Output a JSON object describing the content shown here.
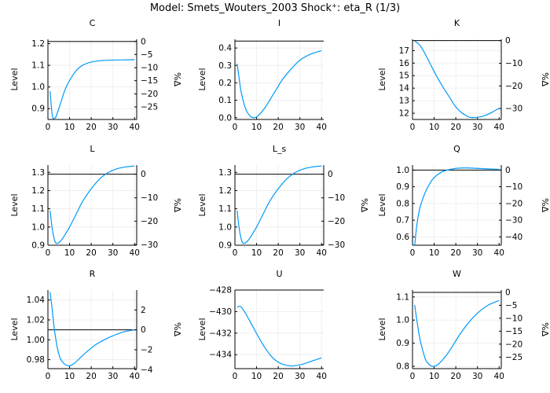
{
  "figure_title": "Model: Smets_Wouters_2003        Shock⁺: eta_R  (1/3)",
  "colors": {
    "line": "#009AFA",
    "axis": "#000000",
    "grid": "#ececec",
    "steady": "#000000"
  },
  "chart_data": [
    {
      "type": "line",
      "title": "C",
      "ylabel": "Level",
      "y2label": "%Δ",
      "xlim": [
        0,
        41
      ],
      "ylim": [
        0.85,
        1.22
      ],
      "xticks": [
        "0",
        "10",
        "20",
        "30",
        "40"
      ],
      "yticks": [
        {
          "v": 0.9,
          "t": "0.9"
        },
        {
          "v": 1.0,
          "t": "1.0"
        },
        {
          "v": 1.1,
          "t": "1.1"
        },
        {
          "v": 1.2,
          "t": "1.2"
        }
      ],
      "y2ticks": [
        {
          "v": 1.21,
          "t": "0"
        },
        {
          "v": 1.15,
          "t": "−5"
        },
        {
          "v": 1.089,
          "t": "−10"
        },
        {
          "v": 1.029,
          "t": "−15"
        },
        {
          "v": 0.968,
          "t": "−20"
        },
        {
          "v": 0.908,
          "t": "−25"
        }
      ],
      "steady_state": 1.21,
      "x": [
        1,
        2,
        3,
        4,
        6,
        8,
        10,
        13,
        16,
        20,
        25,
        30,
        35,
        40
      ],
      "values": [
        0.98,
        0.87,
        0.855,
        0.87,
        0.93,
        0.99,
        1.03,
        1.075,
        1.1,
        1.115,
        1.122,
        1.124,
        1.125,
        1.126
      ]
    },
    {
      "type": "line",
      "title": "I",
      "ylabel": "Level",
      "y2label": "",
      "xlim": [
        0,
        41
      ],
      "ylim": [
        -0.01,
        0.45
      ],
      "xticks": [
        "0",
        "10",
        "20",
        "30",
        "40"
      ],
      "yticks": [
        {
          "v": 0.0,
          "t": "0.0"
        },
        {
          "v": 0.1,
          "t": "0.1"
        },
        {
          "v": 0.2,
          "t": "0.2"
        },
        {
          "v": 0.3,
          "t": "0.3"
        },
        {
          "v": 0.4,
          "t": "0.4"
        }
      ],
      "y2ticks": [],
      "steady_state": 0.44,
      "x": [
        1,
        2,
        3,
        5,
        7,
        9,
        11,
        14,
        18,
        22,
        26,
        30,
        35,
        40
      ],
      "values": [
        0.31,
        0.22,
        0.14,
        0.05,
        0.01,
        0.0,
        0.015,
        0.06,
        0.14,
        0.22,
        0.28,
        0.33,
        0.365,
        0.385
      ]
    },
    {
      "type": "line",
      "title": "K",
      "ylabel": "Level",
      "y2label": "%Δ",
      "xlim": [
        0,
        41
      ],
      "ylim": [
        11.5,
        17.9
      ],
      "xticks": [
        "0",
        "10",
        "20",
        "30",
        "40"
      ],
      "yticks": [
        {
          "v": 12,
          "t": "12"
        },
        {
          "v": 13,
          "t": "13"
        },
        {
          "v": 14,
          "t": "14"
        },
        {
          "v": 15,
          "t": "15"
        },
        {
          "v": 16,
          "t": "16"
        },
        {
          "v": 17,
          "t": "17"
        }
      ],
      "y2ticks": [
        {
          "v": 17.8,
          "t": "0"
        },
        {
          "v": 15.99,
          "t": "−10"
        },
        {
          "v": 14.18,
          "t": "−20"
        },
        {
          "v": 12.37,
          "t": "−30"
        }
      ],
      "steady_state": 17.8,
      "x": [
        1,
        3,
        5,
        8,
        11,
        14,
        17,
        20,
        23,
        26,
        28,
        31,
        34,
        37,
        40
      ],
      "values": [
        17.75,
        17.5,
        17.0,
        16.0,
        15.0,
        14.1,
        13.3,
        12.5,
        12.0,
        11.7,
        11.65,
        11.7,
        11.85,
        12.1,
        12.4
      ]
    },
    {
      "type": "line",
      "title": "L",
      "ylabel": "Level",
      "y2label": "%Δ",
      "xlim": [
        0,
        41
      ],
      "ylim": [
        0.9,
        1.34
      ],
      "xticks": [
        "0",
        "10",
        "20",
        "30",
        "40"
      ],
      "yticks": [
        {
          "v": 0.9,
          "t": "0.9"
        },
        {
          "v": 1.0,
          "t": "1.0"
        },
        {
          "v": 1.1,
          "t": "1.1"
        },
        {
          "v": 1.2,
          "t": "1.2"
        },
        {
          "v": 1.3,
          "t": "1.3"
        }
      ],
      "y2ticks": [
        {
          "v": 1.29,
          "t": "0"
        },
        {
          "v": 1.16,
          "t": "−10"
        },
        {
          "v": 1.032,
          "t": "−20"
        },
        {
          "v": 0.903,
          "t": "−30"
        }
      ],
      "steady_state": 1.29,
      "x": [
        1,
        2,
        3,
        4,
        6,
        8,
        10,
        13,
        16,
        20,
        24,
        28,
        32,
        36,
        40
      ],
      "values": [
        1.09,
        0.99,
        0.93,
        0.91,
        0.925,
        0.96,
        1.0,
        1.07,
        1.14,
        1.21,
        1.265,
        1.3,
        1.32,
        1.33,
        1.335
      ]
    },
    {
      "type": "line",
      "title": "L_s",
      "ylabel": "Level",
      "y2label": "%Δ",
      "xlim": [
        0,
        41
      ],
      "ylim": [
        0.9,
        1.34
      ],
      "xticks": [
        "0",
        "10",
        "20",
        "30",
        "40"
      ],
      "yticks": [
        {
          "v": 0.9,
          "t": "0.9"
        },
        {
          "v": 1.0,
          "t": "1.0"
        },
        {
          "v": 1.1,
          "t": "1.1"
        },
        {
          "v": 1.2,
          "t": "1.2"
        },
        {
          "v": 1.3,
          "t": "1.3"
        }
      ],
      "y2ticks": [
        {
          "v": 1.29,
          "t": "0"
        },
        {
          "v": 1.16,
          "t": "−10"
        },
        {
          "v": 1.032,
          "t": "−20"
        },
        {
          "v": 0.903,
          "t": "−30"
        }
      ],
      "steady_state": 1.29,
      "x": [
        1,
        2,
        3,
        4,
        6,
        8,
        10,
        13,
        16,
        20,
        24,
        28,
        32,
        36,
        40
      ],
      "values": [
        1.09,
        0.99,
        0.93,
        0.91,
        0.925,
        0.96,
        1.0,
        1.07,
        1.14,
        1.21,
        1.265,
        1.3,
        1.32,
        1.33,
        1.335
      ]
    },
    {
      "type": "line",
      "title": "Q",
      "ylabel": "Level",
      "y2label": "%Δ",
      "xlim": [
        0,
        41
      ],
      "ylim": [
        0.55,
        1.03
      ],
      "xticks": [
        "0",
        "10",
        "20",
        "30",
        "40"
      ],
      "yticks": [
        {
          "v": 0.6,
          "t": "0.6"
        },
        {
          "v": 0.7,
          "t": "0.7"
        },
        {
          "v": 0.8,
          "t": "0.8"
        },
        {
          "v": 0.9,
          "t": "0.9"
        },
        {
          "v": 1.0,
          "t": "1.0"
        }
      ],
      "y2ticks": [
        {
          "v": 1.0,
          "t": "0"
        },
        {
          "v": 0.9,
          "t": "−10"
        },
        {
          "v": 0.8,
          "t": "−20"
        },
        {
          "v": 0.7,
          "t": "−30"
        },
        {
          "v": 0.6,
          "t": "−40"
        }
      ],
      "steady_state": 1.0,
      "x": [
        1,
        2,
        3,
        4,
        6,
        8,
        10,
        13,
        16,
        20,
        25,
        30,
        35,
        40
      ],
      "values": [
        0.55,
        0.67,
        0.75,
        0.8,
        0.87,
        0.92,
        0.955,
        0.985,
        1.0,
        1.01,
        1.013,
        1.01,
        1.007,
        1.004
      ]
    },
    {
      "type": "line",
      "title": "R",
      "ylabel": "Level",
      "y2label": "%Δ",
      "xlim": [
        0,
        41
      ],
      "ylim": [
        0.971,
        1.05
      ],
      "xticks": [
        "0",
        "10",
        "20",
        "30",
        "40"
      ],
      "yticks": [
        {
          "v": 0.98,
          "t": "0.98"
        },
        {
          "v": 1.0,
          "t": "1.00"
        },
        {
          "v": 1.02,
          "t": "1.02"
        },
        {
          "v": 1.04,
          "t": "1.04"
        }
      ],
      "y2ticks": [
        {
          "v": 1.03,
          "t": "2"
        },
        {
          "v": 1.01,
          "t": "0"
        },
        {
          "v": 0.99,
          "t": "−2"
        },
        {
          "v": 0.97,
          "t": "−4"
        }
      ],
      "steady_state": 1.01,
      "x": [
        1,
        2,
        3,
        4,
        5,
        6,
        8,
        10,
        12,
        15,
        18,
        22,
        26,
        30,
        35,
        40
      ],
      "values": [
        1.048,
        1.03,
        1.01,
        0.996,
        0.986,
        0.98,
        0.975,
        0.974,
        0.976,
        0.982,
        0.988,
        0.995,
        1.0,
        1.004,
        1.008,
        1.01
      ]
    },
    {
      "type": "line",
      "title": "U",
      "ylabel": "Level",
      "y2label": "",
      "xlim": [
        0,
        41
      ],
      "ylim": [
        -435.3,
        -428.0
      ],
      "xticks": [
        "0",
        "10",
        "20",
        "30",
        "40"
      ],
      "yticks": [
        {
          "v": -428,
          "t": "−428"
        },
        {
          "v": -430,
          "t": "−430"
        },
        {
          "v": -432,
          "t": "−432"
        },
        {
          "v": -434,
          "t": "−434"
        }
      ],
      "y2ticks": [],
      "steady_state": -428.0,
      "x": [
        1,
        2,
        3,
        5,
        8,
        11,
        14,
        17,
        20,
        23,
        26,
        28,
        31,
        34,
        37,
        40
      ],
      "values": [
        -429.6,
        -429.5,
        -429.6,
        -430.2,
        -431.3,
        -432.4,
        -433.4,
        -434.2,
        -434.7,
        -434.95,
        -435.05,
        -435.02,
        -434.9,
        -434.7,
        -434.5,
        -434.3
      ]
    },
    {
      "type": "line",
      "title": "W",
      "ylabel": "Level",
      "y2label": "%Δ",
      "xlim": [
        0,
        41
      ],
      "ylim": [
        0.79,
        1.13
      ],
      "xticks": [
        "0",
        "10",
        "20",
        "30",
        "40"
      ],
      "yticks": [
        {
          "v": 0.8,
          "t": "0.8"
        },
        {
          "v": 0.9,
          "t": "0.9"
        },
        {
          "v": 1.0,
          "t": "1.0"
        },
        {
          "v": 1.1,
          "t": "1.1"
        }
      ],
      "y2ticks": [
        {
          "v": 1.12,
          "t": "0"
        },
        {
          "v": 1.064,
          "t": "−5"
        },
        {
          "v": 1.008,
          "t": "−10"
        },
        {
          "v": 0.952,
          "t": "−15"
        },
        {
          "v": 0.896,
          "t": "−20"
        },
        {
          "v": 0.84,
          "t": "−25"
        }
      ],
      "steady_state": 1.12,
      "x": [
        1,
        2,
        3,
        4,
        6,
        8,
        10,
        12,
        15,
        18,
        22,
        26,
        30,
        35,
        40
      ],
      "values": [
        1.065,
        1.0,
        0.94,
        0.895,
        0.83,
        0.805,
        0.8,
        0.81,
        0.84,
        0.88,
        0.94,
        0.99,
        1.03,
        1.065,
        1.085
      ]
    }
  ]
}
